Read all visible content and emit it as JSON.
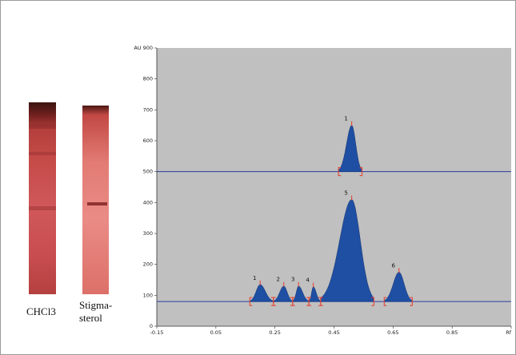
{
  "tlc_plates": [
    {
      "label": "CHCl3"
    },
    {
      "label": "Stigma-\nsterol"
    }
  ],
  "chart_data": {
    "type": "area",
    "x_label": "Rf",
    "y_label": "AU",
    "xlim": [
      -0.15,
      1.05
    ],
    "ylim": [
      0,
      900
    ],
    "x_ticks": [
      -0.15,
      0.05,
      0.25,
      0.45,
      0.65,
      0.85,
      1.05
    ],
    "x_tick_labels": [
      "-0.15",
      "0.05",
      "0.25",
      "0.45",
      "0.65",
      "0.85",
      "Rf"
    ],
    "y_ticks": [
      0,
      100,
      200,
      300,
      400,
      500,
      600,
      700,
      800,
      900
    ],
    "y_tick_labels": [
      "0",
      "100",
      "200",
      "300",
      "400",
      "500",
      "600",
      "700",
      "800",
      "AU 900"
    ],
    "grid": false,
    "background": "#c0c0c0",
    "fill_color": "#1f4fa3",
    "baseline_color": "#2a3e9c",
    "marker_color": "#e83a2a",
    "series": [
      {
        "baseline": 500,
        "peaks": [
          {
            "label": "1",
            "rf": 0.51,
            "height": 650,
            "start": 0.465,
            "end": 0.545
          }
        ]
      },
      {
        "baseline": 80,
        "peaks": [
          {
            "label": "1",
            "rf": 0.2,
            "height": 135,
            "start": 0.165,
            "end": 0.245
          },
          {
            "label": "2",
            "rf": 0.28,
            "height": 130,
            "start": 0.245,
            "end": 0.31
          },
          {
            "label": "3",
            "rf": 0.33,
            "height": 130,
            "start": 0.31,
            "end": 0.365
          },
          {
            "label": "4",
            "rf": 0.38,
            "height": 128,
            "start": 0.365,
            "end": 0.405
          },
          {
            "label": "5",
            "rf": 0.51,
            "height": 410,
            "start": 0.405,
            "end": 0.585
          },
          {
            "label": "6",
            "rf": 0.67,
            "height": 175,
            "start": 0.62,
            "end": 0.715
          }
        ]
      }
    ]
  }
}
